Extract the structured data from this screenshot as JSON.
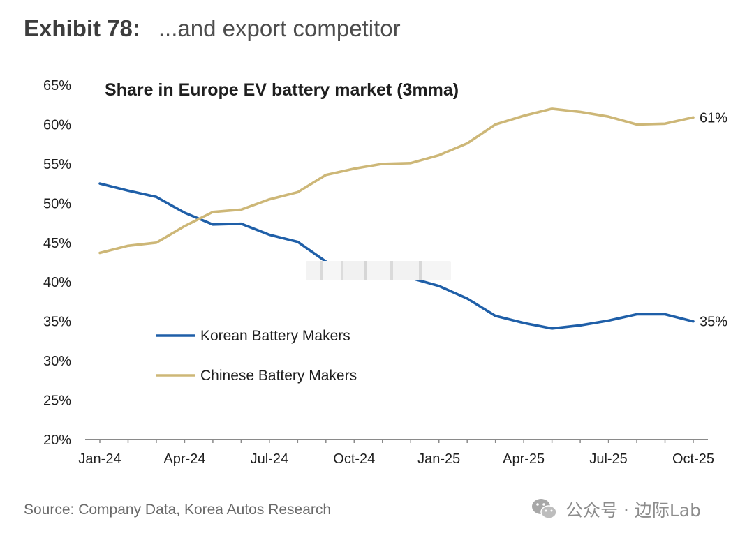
{
  "header": {
    "exhibit_label": "Exhibit 78:",
    "exhibit_subtitle": "...and export competitor"
  },
  "footer": {
    "source": "Source: Company Data, Korea Autos Research",
    "watermark": "公众号 · 边际Lab"
  },
  "chart_data": {
    "type": "line",
    "title": "Share in Europe EV battery market (3mma)",
    "xlabel": "",
    "ylabel": "",
    "x_tick_labels": [
      "Jan-24",
      "Apr-24",
      "Jul-24",
      "Oct-24",
      "Jan-25",
      "Apr-25",
      "Jul-25",
      "Oct-25"
    ],
    "x": [
      "Jan-24",
      "Feb-24",
      "Mar-24",
      "Apr-24",
      "May-24",
      "Jun-24",
      "Jul-24",
      "Aug-24",
      "Sep-24",
      "Oct-24",
      "Nov-24",
      "Dec-24",
      "Jan-25",
      "Feb-25",
      "Mar-25",
      "Apr-25",
      "May-25",
      "Jun-25",
      "Jul-25",
      "Aug-25",
      "Sep-25",
      "Oct-25"
    ],
    "y_tick_labels": [
      "20%",
      "25%",
      "30%",
      "35%",
      "40%",
      "45%",
      "50%",
      "55%",
      "60%",
      "65%"
    ],
    "ylim": [
      20,
      65
    ],
    "grid": false,
    "legend_position": "left-center",
    "series": [
      {
        "name": "Korean Battery Makers",
        "color": "#1f5fa8",
        "values": [
          52.5,
          51.6,
          50.8,
          48.8,
          47.3,
          47.4,
          46.0,
          45.1,
          42.6,
          null,
          null,
          40.5,
          39.5,
          37.9,
          35.7,
          34.8,
          34.1,
          34.5,
          35.1,
          35.9,
          35.9,
          35.0
        ],
        "end_label": "35%"
      },
      {
        "name": "Chinese Battery Makers",
        "color": "#cdb777",
        "values": [
          43.7,
          44.6,
          45.0,
          47.1,
          48.9,
          49.2,
          50.5,
          51.4,
          53.6,
          54.4,
          55.0,
          55.1,
          56.1,
          57.6,
          60.0,
          61.1,
          62.0,
          61.6,
          61.0,
          60.0,
          60.1,
          60.9
        ],
        "end_label": "61%"
      }
    ]
  }
}
